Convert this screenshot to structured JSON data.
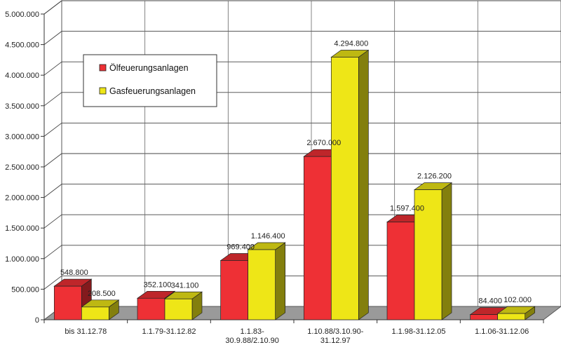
{
  "chart_data": {
    "type": "bar",
    "title": "",
    "xlabel": "",
    "ylabel": "",
    "ylim": [
      0,
      5000000
    ],
    "y_ticks": [
      0,
      500000,
      1000000,
      1500000,
      2000000,
      2500000,
      3000000,
      3500000,
      4000000,
      4500000,
      5000000
    ],
    "y_tick_labels": [
      "0",
      "500.000",
      "1.000.000",
      "1.500.000",
      "2.000.000",
      "2.500.000",
      "3.000.000",
      "3.500.000",
      "4.000.000",
      "4.500.000",
      "5.000.000"
    ],
    "grid": true,
    "three_d": true,
    "legend_position": "top-left",
    "categories": [
      [
        "bis 31.12.78"
      ],
      [
        "1.1.79-31.12.82"
      ],
      [
        "1.1.83-",
        "30.9.88/2.10.90"
      ],
      [
        "1.10.88/3.10.90-",
        "31.12.97"
      ],
      [
        "1.1.98-31.12.05"
      ],
      [
        "1.1.06-31.12.06"
      ]
    ],
    "series": [
      {
        "name": "Ölfeuerungsanlagen",
        "color": "#ee3035",
        "values": [
          548800,
          352100,
          969400,
          2670000,
          1597400,
          84400
        ],
        "labels": [
          "548.800",
          "352.100",
          "969.400",
          "2.670.000",
          "1.597.400",
          "84.400"
        ]
      },
      {
        "name": "Gasfeuerungsanlagen",
        "color": "#eee617",
        "values": [
          208500,
          341100,
          1146400,
          4294800,
          2126200,
          102000
        ],
        "labels": [
          "208.500",
          "341.100",
          "1.146.400",
          "4.294.800",
          "2.126.200",
          "102.000"
        ]
      }
    ]
  }
}
